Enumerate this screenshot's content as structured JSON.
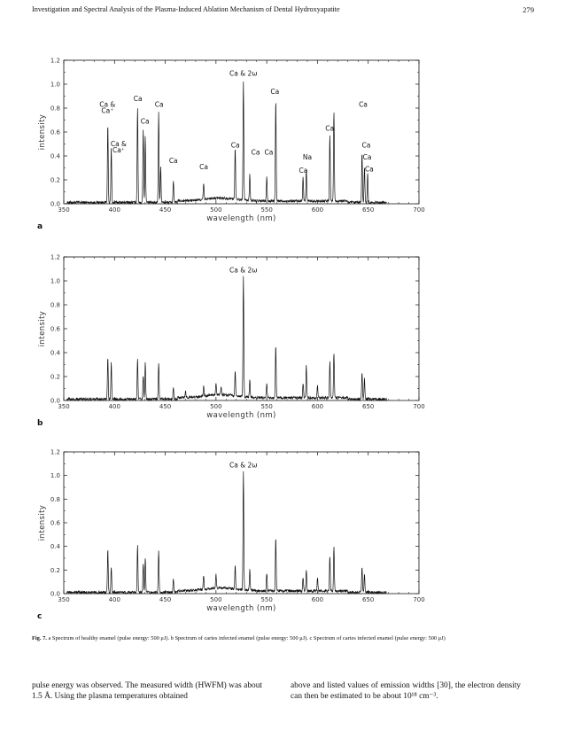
{
  "running_head": "Investigation and Spectral Analysis of the Plasma-Induced Ablation Mechanism of Dental Hydroxyapatite",
  "page_number": "279",
  "panel_labels": [
    "a",
    "b",
    "c"
  ],
  "caption": {
    "fig_label": "Fig. 7.",
    "text": "a Spectrum of healthy enamel (pulse energy: 500 μJ). b Spectrum of caries infected enamel (pulse energy: 500 μJ). c Spectrum of caries infected enamel (pulse energy: 500 μJ)"
  },
  "body_text": {
    "left": "pulse energy was observed. The measured width (HWFM) was about 1.5 Å. Using the plasma temperatures obtained",
    "right": "above and listed values of emission widths [30], the electron density can then be estimated to be about 10¹⁸ cm⁻³."
  },
  "chart_data": [
    {
      "type": "line",
      "panel": "a",
      "xlabel": "wavelength (nm)",
      "ylabel": "intensity",
      "xlim": [
        350,
        700
      ],
      "ylim": [
        0.0,
        1.2
      ],
      "xticks": [
        350,
        400,
        450,
        500,
        550,
        600,
        650,
        700
      ],
      "yticks": [
        "0.0",
        "0.2",
        "0.4",
        "0.6",
        "0.8",
        "1.0",
        "1.2"
      ],
      "grid": false,
      "peaks": [
        [
          393.4,
          0.65
        ],
        [
          396.8,
          0.45
        ],
        [
          422.7,
          0.8
        ],
        [
          428.3,
          0.62
        ],
        [
          430.3,
          0.55
        ],
        [
          443.5,
          0.76
        ],
        [
          445.5,
          0.3
        ],
        [
          458.0,
          0.18
        ],
        [
          487.8,
          0.13
        ],
        [
          518.9,
          0.43
        ],
        [
          527.0,
          1.0
        ],
        [
          533.3,
          0.22
        ],
        [
          550.0,
          0.2
        ],
        [
          558.9,
          0.84
        ],
        [
          585.8,
          0.2
        ],
        [
          589.0,
          0.27
        ],
        [
          612.2,
          0.55
        ],
        [
          616.2,
          0.75
        ],
        [
          643.9,
          0.42
        ],
        [
          646.3,
          0.3
        ],
        [
          649.4,
          0.25
        ]
      ],
      "annotations": [
        {
          "text": "Ca & 2ω",
          "x": 527,
          "y": 1.07
        },
        {
          "text": "Ca",
          "x": 558,
          "y": 0.92
        },
        {
          "text": "Ca",
          "x": 423,
          "y": 0.86
        },
        {
          "text": "Ca",
          "x": 444,
          "y": 0.81
        },
        {
          "text": "Ca &",
          "x": 393,
          "y": 0.81
        },
        {
          "text": "Ca⁺",
          "x": 393,
          "y": 0.76
        },
        {
          "text": "Ca",
          "x": 430,
          "y": 0.67
        },
        {
          "text": "Ca",
          "x": 645,
          "y": 0.81
        },
        {
          "text": "Ca",
          "x": 612,
          "y": 0.61
        },
        {
          "text": "Ca &",
          "x": 404,
          "y": 0.48
        },
        {
          "text": "Ca⁺",
          "x": 404,
          "y": 0.43
        },
        {
          "text": "Ca",
          "x": 519,
          "y": 0.47
        },
        {
          "text": "Ca",
          "x": 539,
          "y": 0.41
        },
        {
          "text": "Ca",
          "x": 552,
          "y": 0.41
        },
        {
          "text": "Na",
          "x": 590,
          "y": 0.37
        },
        {
          "text": "Ca",
          "x": 458,
          "y": 0.34
        },
        {
          "text": "Ca",
          "x": 488,
          "y": 0.29
        },
        {
          "text": "Ca",
          "x": 586,
          "y": 0.26
        },
        {
          "text": "Ca",
          "x": 648,
          "y": 0.47
        },
        {
          "text": "Ca",
          "x": 649,
          "y": 0.37
        },
        {
          "text": "Ca",
          "x": 651,
          "y": 0.27
        }
      ]
    },
    {
      "type": "line",
      "panel": "b",
      "xlabel": "wavelength (nm)",
      "ylabel": "intensity",
      "xlim": [
        350,
        700
      ],
      "ylim": [
        0.0,
        1.2
      ],
      "xticks": [
        350,
        400,
        450,
        500,
        550,
        600,
        650,
        700
      ],
      "yticks": [
        "0.0",
        "0.2",
        "0.4",
        "0.6",
        "0.8",
        "1.0",
        "1.2"
      ],
      "grid": false,
      "peaks": [
        [
          393.4,
          0.35
        ],
        [
          396.8,
          0.3
        ],
        [
          422.7,
          0.33
        ],
        [
          428.3,
          0.2
        ],
        [
          430.3,
          0.3
        ],
        [
          443.5,
          0.3
        ],
        [
          458.0,
          0.1
        ],
        [
          470.0,
          0.05
        ],
        [
          487.8,
          0.08
        ],
        [
          500.0,
          0.1
        ],
        [
          505.0,
          0.07
        ],
        [
          518.9,
          0.2
        ],
        [
          527.0,
          1.0
        ],
        [
          533.3,
          0.15
        ],
        [
          550.0,
          0.12
        ],
        [
          558.9,
          0.44
        ],
        [
          585.8,
          0.12
        ],
        [
          589.0,
          0.27
        ],
        [
          600.0,
          0.1
        ],
        [
          612.2,
          0.3
        ],
        [
          616.2,
          0.38
        ],
        [
          643.9,
          0.22
        ],
        [
          646.3,
          0.17
        ]
      ],
      "annotations": [
        {
          "text": "Ca & 2ω",
          "x": 527,
          "y": 1.07
        }
      ]
    },
    {
      "type": "line",
      "panel": "c",
      "xlabel": "wavelength (nm)",
      "ylabel": "intensity",
      "xlim": [
        350,
        700
      ],
      "ylim": [
        0.0,
        1.2
      ],
      "xticks": [
        350,
        400,
        450,
        500,
        550,
        600,
        650,
        700
      ],
      "yticks": [
        "0.0",
        "0.2",
        "0.4",
        "0.6",
        "0.8",
        "1.0",
        "1.2"
      ],
      "grid": false,
      "peaks": [
        [
          393.4,
          0.37
        ],
        [
          396.8,
          0.22
        ],
        [
          422.7,
          0.4
        ],
        [
          428.3,
          0.25
        ],
        [
          430.3,
          0.3
        ],
        [
          443.5,
          0.35
        ],
        [
          458.0,
          0.12
        ],
        [
          487.8,
          0.12
        ],
        [
          500.0,
          0.12
        ],
        [
          518.9,
          0.2
        ],
        [
          527.0,
          1.0
        ],
        [
          533.3,
          0.18
        ],
        [
          550.0,
          0.15
        ],
        [
          558.9,
          0.45
        ],
        [
          585.8,
          0.12
        ],
        [
          589.0,
          0.18
        ],
        [
          600.0,
          0.12
        ],
        [
          612.2,
          0.3
        ],
        [
          616.2,
          0.37
        ],
        [
          643.9,
          0.22
        ],
        [
          646.3,
          0.15
        ]
      ],
      "annotations": [
        {
          "text": "Ca & 2ω",
          "x": 527,
          "y": 1.07
        }
      ]
    }
  ]
}
